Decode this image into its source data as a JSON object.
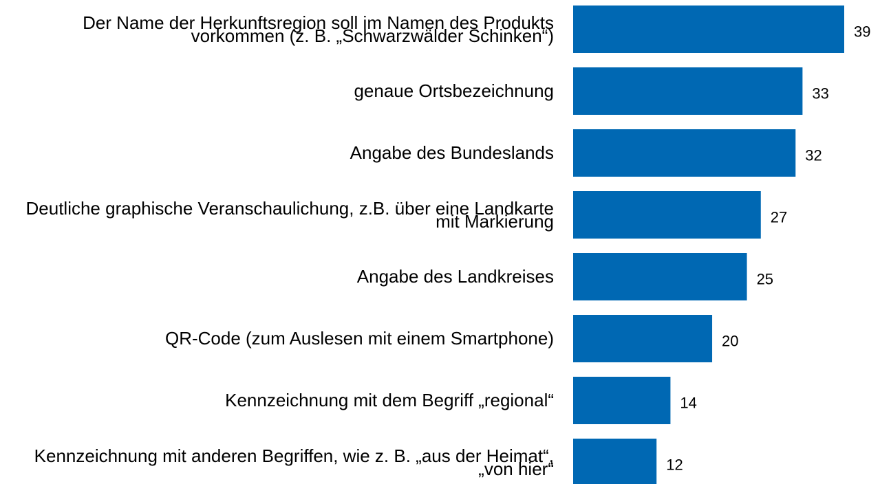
{
  "chart_data": {
    "type": "barh",
    "categories": [
      "Der Name der Herkunftsregion soll im Namen des Produkts vorkommen (z. B. „Schwarzwälder Schinken“)",
      "genaue Ortsbezeichnung",
      "Angabe des Bundeslands",
      "Deutliche graphische Veranschaulichung, z.B. über eine Landkarte mit Markierung",
      "Angabe des Landkreises",
      "QR-Code (zum Auslesen mit einem Smartphone)",
      "Kennzeichnung mit dem Begriff „regional“",
      "Kennzeichnung mit anderen Begriffen, wie z. B. „aus der Heimat“, „von hier“"
    ],
    "values": [
      39,
      33,
      32,
      27,
      25,
      20,
      14,
      12
    ],
    "color": "#0068b3"
  }
}
